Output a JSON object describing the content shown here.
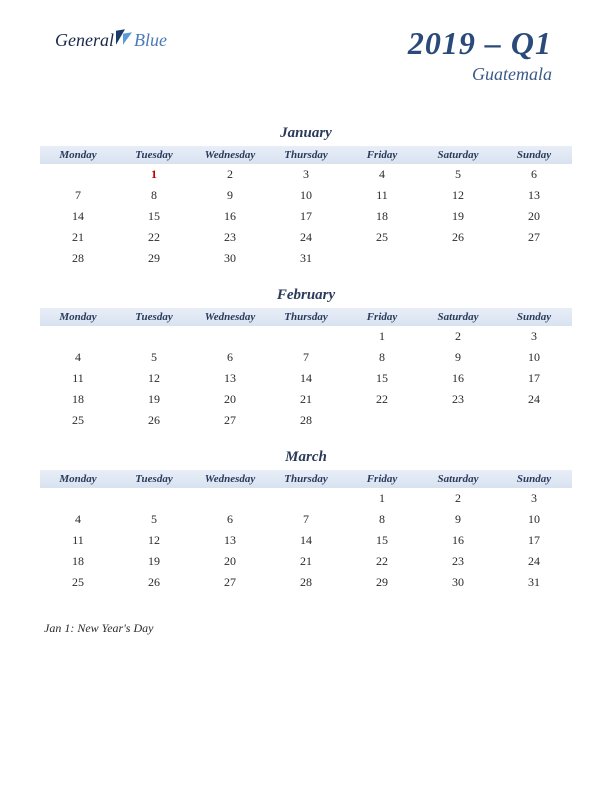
{
  "logo": {
    "part1": "General",
    "part2": "Blue"
  },
  "heading": {
    "title": "2019 – Q1",
    "subtitle": "Guatemala"
  },
  "dayHeaders": [
    "Monday",
    "Tuesday",
    "Wednesday",
    "Thursday",
    "Friday",
    "Saturday",
    "Sunday"
  ],
  "months": [
    {
      "name": "January",
      "weeks": [
        [
          "",
          "1",
          "2",
          "3",
          "4",
          "5",
          "6"
        ],
        [
          "7",
          "8",
          "9",
          "10",
          "11",
          "12",
          "13"
        ],
        [
          "14",
          "15",
          "16",
          "17",
          "18",
          "19",
          "20"
        ],
        [
          "21",
          "22",
          "23",
          "24",
          "25",
          "26",
          "27"
        ],
        [
          "28",
          "29",
          "30",
          "31",
          "",
          "",
          ""
        ]
      ],
      "holidays": [
        [
          0,
          1
        ]
      ]
    },
    {
      "name": "February",
      "weeks": [
        [
          "",
          "",
          "",
          "",
          "1",
          "2",
          "3"
        ],
        [
          "4",
          "5",
          "6",
          "7",
          "8",
          "9",
          "10"
        ],
        [
          "11",
          "12",
          "13",
          "14",
          "15",
          "16",
          "17"
        ],
        [
          "18",
          "19",
          "20",
          "21",
          "22",
          "23",
          "24"
        ],
        [
          "25",
          "26",
          "27",
          "28",
          "",
          "",
          ""
        ]
      ],
      "holidays": []
    },
    {
      "name": "March",
      "weeks": [
        [
          "",
          "",
          "",
          "",
          "1",
          "2",
          "3"
        ],
        [
          "4",
          "5",
          "6",
          "7",
          "8",
          "9",
          "10"
        ],
        [
          "11",
          "12",
          "13",
          "14",
          "15",
          "16",
          "17"
        ],
        [
          "18",
          "19",
          "20",
          "21",
          "22",
          "23",
          "24"
        ],
        [
          "25",
          "26",
          "27",
          "28",
          "29",
          "30",
          "31"
        ]
      ],
      "holidays": []
    }
  ],
  "holidayList": [
    "Jan 1: New Year's Day"
  ],
  "colors": {
    "headerGradientTop": "#e8eef8",
    "headerGradientBottom": "#d8e2f0",
    "titleColor": "#2a4a7a",
    "subtitleColor": "#3a5a8a",
    "textColor": "#2a2a2a",
    "holidayColor": "#c00000"
  }
}
